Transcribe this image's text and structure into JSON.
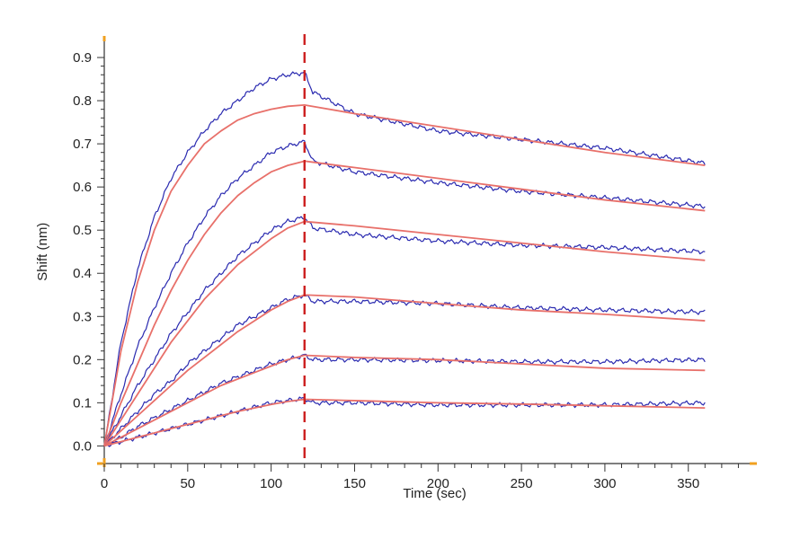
{
  "chart_data": {
    "type": "line",
    "title": "",
    "xlabel": "Time (sec)",
    "ylabel": "Shift (nm)",
    "xlim": [
      0,
      390
    ],
    "ylim": [
      -0.02,
      0.95
    ],
    "x_ticks": [
      0,
      50,
      100,
      150,
      200,
      250,
      300,
      350
    ],
    "x_tick_labels": [
      "0",
      "50",
      "100",
      "150",
      "200",
      "250",
      "300",
      "350"
    ],
    "y_ticks": [
      0.0,
      0.1,
      0.2,
      0.3,
      0.4,
      0.5,
      0.6,
      0.7,
      0.8,
      0.9
    ],
    "y_tick_labels": [
      "0.0",
      "0.1",
      "0.2",
      "0.3",
      "0.4",
      "0.5",
      "0.6",
      "0.7",
      "0.8",
      "0.9"
    ],
    "grid": false,
    "legend": "none",
    "dissociation_start": 120,
    "colors": {
      "measured": "#2a2ab0",
      "fit": "#e8706a",
      "divider": "#cc1f1f",
      "axis_marker": "#f0a020"
    },
    "series": [
      {
        "kind": "measured",
        "x": [
          0,
          10,
          20,
          30,
          40,
          50,
          60,
          70,
          80,
          90,
          100,
          110,
          120,
          125,
          150,
          200,
          250,
          300,
          360
        ],
        "values": [
          0.0,
          0.24,
          0.41,
          0.53,
          0.62,
          0.68,
          0.73,
          0.77,
          0.8,
          0.83,
          0.85,
          0.86,
          0.865,
          0.82,
          0.77,
          0.73,
          0.71,
          0.69,
          0.655
        ]
      },
      {
        "kind": "fit",
        "x": [
          0,
          10,
          20,
          30,
          40,
          50,
          60,
          70,
          80,
          90,
          100,
          110,
          120,
          150,
          200,
          250,
          300,
          360
        ],
        "values": [
          0.0,
          0.22,
          0.38,
          0.5,
          0.59,
          0.65,
          0.7,
          0.73,
          0.755,
          0.77,
          0.78,
          0.787,
          0.79,
          0.77,
          0.74,
          0.71,
          0.68,
          0.65
        ]
      },
      {
        "kind": "measured",
        "x": [
          0,
          10,
          20,
          30,
          40,
          50,
          60,
          70,
          80,
          90,
          100,
          110,
          120,
          125,
          150,
          200,
          250,
          300,
          360
        ],
        "values": [
          0.0,
          0.12,
          0.23,
          0.32,
          0.4,
          0.47,
          0.53,
          0.58,
          0.62,
          0.65,
          0.68,
          0.695,
          0.705,
          0.66,
          0.635,
          0.61,
          0.59,
          0.575,
          0.555
        ]
      },
      {
        "kind": "fit",
        "x": [
          0,
          10,
          20,
          30,
          40,
          50,
          60,
          70,
          80,
          90,
          100,
          110,
          120,
          150,
          200,
          250,
          300,
          360
        ],
        "values": [
          0.0,
          0.1,
          0.19,
          0.28,
          0.36,
          0.43,
          0.49,
          0.54,
          0.58,
          0.61,
          0.635,
          0.65,
          0.66,
          0.645,
          0.62,
          0.595,
          0.57,
          0.545
        ]
      },
      {
        "kind": "measured",
        "x": [
          0,
          10,
          20,
          30,
          40,
          50,
          60,
          70,
          80,
          90,
          100,
          110,
          120,
          125,
          150,
          200,
          250,
          300,
          360
        ],
        "values": [
          0.0,
          0.07,
          0.14,
          0.2,
          0.26,
          0.31,
          0.36,
          0.4,
          0.44,
          0.47,
          0.5,
          0.52,
          0.53,
          0.505,
          0.49,
          0.475,
          0.465,
          0.46,
          0.45
        ]
      },
      {
        "kind": "fit",
        "x": [
          0,
          10,
          20,
          30,
          40,
          50,
          60,
          70,
          80,
          90,
          100,
          110,
          120,
          150,
          200,
          250,
          300,
          360
        ],
        "values": [
          0.0,
          0.06,
          0.12,
          0.18,
          0.24,
          0.29,
          0.34,
          0.38,
          0.42,
          0.45,
          0.48,
          0.505,
          0.52,
          0.51,
          0.49,
          0.47,
          0.45,
          0.43
        ]
      },
      {
        "kind": "measured",
        "x": [
          0,
          10,
          20,
          30,
          40,
          50,
          60,
          70,
          80,
          90,
          100,
          110,
          120,
          125,
          150,
          200,
          250,
          300,
          360
        ],
        "values": [
          0.0,
          0.04,
          0.08,
          0.12,
          0.15,
          0.19,
          0.22,
          0.25,
          0.28,
          0.3,
          0.32,
          0.34,
          0.35,
          0.335,
          0.335,
          0.33,
          0.32,
          0.315,
          0.31
        ]
      },
      {
        "kind": "fit",
        "x": [
          0,
          10,
          20,
          30,
          40,
          50,
          60,
          70,
          80,
          90,
          100,
          110,
          120,
          150,
          200,
          250,
          300,
          360
        ],
        "values": [
          0.0,
          0.035,
          0.07,
          0.105,
          0.14,
          0.175,
          0.205,
          0.235,
          0.265,
          0.29,
          0.315,
          0.335,
          0.35,
          0.345,
          0.33,
          0.315,
          0.305,
          0.29
        ]
      },
      {
        "kind": "measured",
        "x": [
          0,
          10,
          20,
          30,
          40,
          50,
          60,
          70,
          80,
          90,
          100,
          110,
          120,
          125,
          150,
          200,
          250,
          300,
          360
        ],
        "values": [
          0.0,
          0.02,
          0.045,
          0.065,
          0.085,
          0.105,
          0.125,
          0.145,
          0.16,
          0.175,
          0.19,
          0.2,
          0.21,
          0.2,
          0.2,
          0.198,
          0.195,
          0.195,
          0.2
        ]
      },
      {
        "kind": "fit",
        "x": [
          0,
          10,
          20,
          30,
          40,
          50,
          60,
          70,
          80,
          90,
          100,
          110,
          120,
          150,
          200,
          250,
          300,
          360
        ],
        "values": [
          0.0,
          0.02,
          0.04,
          0.06,
          0.08,
          0.1,
          0.12,
          0.14,
          0.155,
          0.17,
          0.185,
          0.2,
          0.21,
          0.205,
          0.2,
          0.19,
          0.18,
          0.175
        ]
      },
      {
        "kind": "measured",
        "x": [
          0,
          10,
          20,
          30,
          40,
          50,
          60,
          70,
          80,
          90,
          100,
          110,
          120,
          125,
          150,
          200,
          250,
          300,
          360
        ],
        "values": [
          0.0,
          0.01,
          0.02,
          0.03,
          0.04,
          0.05,
          0.06,
          0.07,
          0.08,
          0.09,
          0.1,
          0.105,
          0.11,
          0.1,
          0.1,
          0.095,
          0.095,
          0.095,
          0.1
        ]
      },
      {
        "kind": "fit",
        "x": [
          0,
          10,
          20,
          30,
          40,
          50,
          60,
          70,
          80,
          90,
          100,
          110,
          120,
          150,
          200,
          250,
          300,
          360
        ],
        "values": [
          0.0,
          0.01,
          0.02,
          0.03,
          0.04,
          0.05,
          0.06,
          0.07,
          0.08,
          0.088,
          0.096,
          0.103,
          0.108,
          0.105,
          0.1,
          0.097,
          0.093,
          0.088
        ]
      }
    ]
  }
}
